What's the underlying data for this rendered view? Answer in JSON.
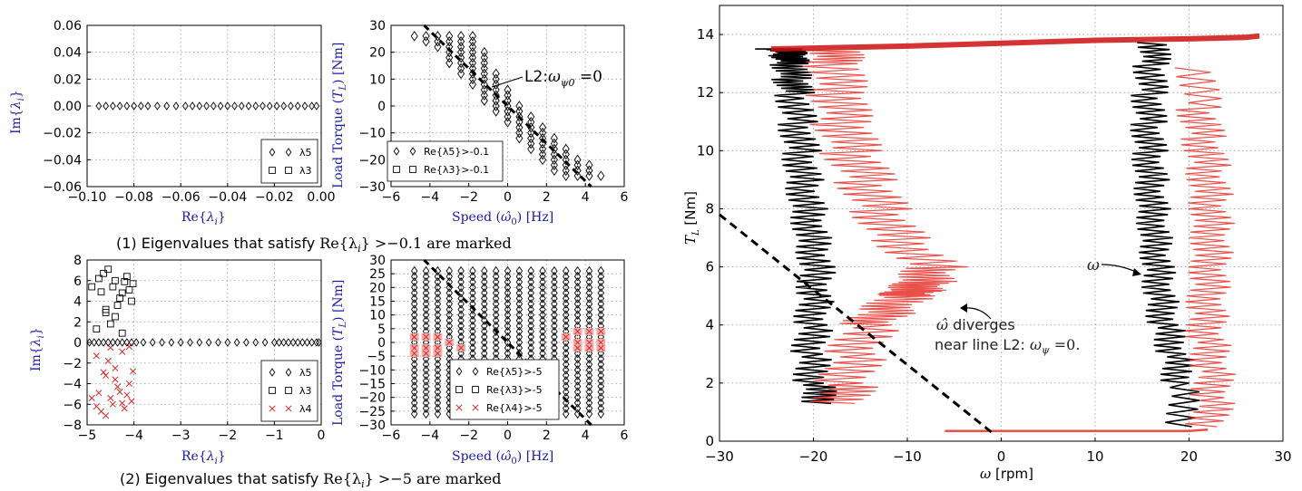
{
  "captions": {
    "c1_prefix": "(1) Eigenvalues that satisfy ",
    "c1_math": "Re{λ",
    "c1_sub": "i",
    "c1_suffix": "} >−0.1 are marked",
    "c2_prefix": "(2) Eigenvalues that satisfy ",
    "c2_math": "Re{λ",
    "c2_sub": "i",
    "c2_suffix": "} >−5 are marked"
  },
  "chart_data": [
    {
      "id": "p1",
      "type": "scatter",
      "xlabel": "Re{λi}",
      "ylabel": "Im{λi}",
      "xlim": [
        -0.1,
        0.0
      ],
      "ylim": [
        -0.06,
        0.06
      ],
      "xticks": [
        "−0.10",
        "−0.08",
        "−0.06",
        "−0.04",
        "−0.02",
        "0.00"
      ],
      "xtick_values": [
        -0.1,
        -0.08,
        -0.06,
        -0.04,
        -0.02,
        0.0
      ],
      "yticks": [
        "−0.06",
        "−0.04",
        "−0.02",
        "0.00",
        "0.02",
        "0.04",
        "0.06"
      ],
      "ytick_values": [
        -0.06,
        -0.04,
        -0.02,
        0.0,
        0.02,
        0.04,
        0.06
      ],
      "grid": true,
      "legend": {
        "placement": "lower-right",
        "entries": [
          "λ5",
          "λ3"
        ]
      },
      "series": [
        {
          "name": "λ5",
          "marker": "diamond",
          "color": "#000000",
          "x": [
            -0.095,
            -0.092,
            -0.089,
            -0.086,
            -0.083,
            -0.08,
            -0.077,
            -0.074,
            -0.07,
            -0.066,
            -0.062,
            -0.058,
            -0.055,
            -0.052,
            -0.049,
            -0.046,
            -0.043,
            -0.04,
            -0.037,
            -0.034,
            -0.031,
            -0.028,
            -0.025,
            -0.022,
            -0.019,
            -0.016,
            -0.013,
            -0.01,
            -0.007,
            -0.004,
            -0.002
          ],
          "y": [
            0,
            0,
            0,
            0,
            0,
            0,
            0,
            0,
            0,
            0,
            0,
            0,
            0,
            0,
            0,
            0,
            0,
            0,
            0,
            0,
            0,
            0,
            0,
            0,
            0,
            0,
            0,
            0,
            0,
            0,
            0
          ]
        }
      ]
    },
    {
      "id": "p2",
      "type": "scatter",
      "xlabel": "Speed (ω̂0) [Hz]",
      "ylabel": "Load Torque (TL) [Nm]",
      "xlim": [
        -6,
        6
      ],
      "ylim": [
        -30,
        30
      ],
      "xticks": [
        "−6",
        "−4",
        "−2",
        "0",
        "2",
        "4",
        "6"
      ],
      "xtick_values": [
        -6,
        -4,
        -2,
        0,
        2,
        4,
        6
      ],
      "yticks": [
        "−30",
        "−20",
        "−10",
        "0",
        "10",
        "20",
        "30"
      ],
      "ytick_values": [
        -30,
        -20,
        -10,
        0,
        10,
        20,
        30
      ],
      "grid": true,
      "legend": {
        "placement": "lower-left",
        "entries": [
          "Re{λ5}>-0.1",
          "Re{λ3}>-0.1"
        ]
      },
      "line": {
        "style": "dashed",
        "x": [
          -4.3,
          4.3
        ],
        "y": [
          32,
          -32
        ]
      },
      "annotation": "L2:ωψ0=0",
      "series": [
        {
          "name": "Re{λ5}>-0.1",
          "marker": "diamond",
          "color": "#000000",
          "columns": [
            {
              "x": -4.8,
              "ymin": 26,
              "ymax": 26
            },
            {
              "x": -4.2,
              "ymin": 24,
              "ymax": 26
            },
            {
              "x": -3.6,
              "ymin": 22,
              "ymax": 26
            },
            {
              "x": -3.0,
              "ymin": 16,
              "ymax": 26
            },
            {
              "x": -2.4,
              "ymin": 12,
              "ymax": 26
            },
            {
              "x": -1.8,
              "ymin": 8,
              "ymax": 26
            },
            {
              "x": -1.2,
              "ymin": 2,
              "ymax": 20
            },
            {
              "x": -0.6,
              "ymin": -2,
              "ymax": 12
            },
            {
              "x": 0.0,
              "ymin": -6,
              "ymax": 6
            },
            {
              "x": 0.6,
              "ymin": -12,
              "ymax": 0
            },
            {
              "x": 1.2,
              "ymin": -16,
              "ymax": -4
            },
            {
              "x": 1.8,
              "ymin": -20,
              "ymax": -8
            },
            {
              "x": 2.4,
              "ymin": -24,
              "ymax": -12
            },
            {
              "x": 3.0,
              "ymin": -26,
              "ymax": -16
            },
            {
              "x": 3.6,
              "ymin": -26,
              "ymax": -20
            },
            {
              "x": 4.2,
              "ymin": -26,
              "ymax": -22
            },
            {
              "x": 4.8,
              "ymin": -26,
              "ymax": -26
            }
          ]
        }
      ]
    },
    {
      "id": "p3",
      "type": "scatter",
      "xlabel": "Re{λi}",
      "ylabel": "Im{λi}",
      "xlim": [
        -5,
        0
      ],
      "ylim": [
        -8,
        8
      ],
      "xticks": [
        "−5",
        "−4",
        "−3",
        "−2",
        "−1",
        "0"
      ],
      "xtick_values": [
        -5,
        -4,
        -3,
        -2,
        -1,
        0
      ],
      "yticks": [
        "−8",
        "−6",
        "−4",
        "−2",
        "0",
        "2",
        "4",
        "6",
        "8"
      ],
      "ytick_values": [
        -8,
        -6,
        -4,
        -2,
        0,
        2,
        4,
        6,
        8
      ],
      "grid": true,
      "legend": {
        "placement": "lower-right",
        "entries": [
          "λ5",
          "λ3",
          "λ4"
        ]
      },
      "series": [
        {
          "name": "λ3",
          "marker": "square",
          "color": "#000000",
          "x": [
            -4.9,
            -4.75,
            -4.7,
            -4.65,
            -4.6,
            -4.55,
            -4.5,
            -4.45,
            -4.4,
            -4.35,
            -4.3,
            -4.25,
            -4.2,
            -4.15,
            -4.1,
            -4.05,
            -4.02,
            -4.6,
            -4.4,
            -4.8,
            -4.25
          ],
          "y": [
            5.4,
            6.2,
            4.9,
            6.7,
            2.9,
            7.1,
            1.8,
            5.4,
            6.0,
            3.6,
            4.3,
            4.8,
            5.9,
            6.4,
            5.1,
            4.0,
            5.7,
            3.2,
            2.5,
            1.3,
            0.9
          ]
        },
        {
          "name": "λ4",
          "marker": "x",
          "color": "#d62728",
          "x": [
            -4.9,
            -4.8,
            -4.75,
            -4.7,
            -4.65,
            -4.6,
            -4.55,
            -4.5,
            -4.45,
            -4.4,
            -4.35,
            -4.3,
            -4.25,
            -4.2,
            -4.15,
            -4.1,
            -4.05,
            -4.02,
            -4.6,
            -4.4,
            -4.8,
            -4.25,
            -4.1,
            -4.5
          ],
          "y": [
            -5.4,
            -6.2,
            -4.9,
            -6.7,
            -2.9,
            -7.1,
            -1.8,
            -5.4,
            -6.0,
            -3.6,
            -4.3,
            -4.8,
            -5.9,
            -6.4,
            -5.1,
            -4.0,
            -5.7,
            -2.8,
            -3.2,
            -2.5,
            -1.3,
            -0.9,
            -0.4,
            -0.5
          ]
        },
        {
          "name": "λ5",
          "marker": "diamond",
          "color": "#000000",
          "x": [
            -4.95,
            -4.85,
            -4.75,
            -4.65,
            -4.55,
            -4.45,
            -4.35,
            -4.25,
            -4.15,
            -4.05,
            -3.95,
            -3.8,
            -3.6,
            -3.4,
            -3.2,
            -3.0,
            -2.8,
            -2.6,
            -2.4,
            -2.2,
            -2.0,
            -1.8,
            -1.6,
            -1.4,
            -1.2,
            -1.0,
            -0.9,
            -0.8,
            -0.7,
            -0.6,
            -0.5,
            -0.4,
            -0.3,
            -0.2,
            -0.1,
            -0.05
          ],
          "y": [
            0,
            0,
            0,
            0,
            0,
            0,
            0,
            0,
            0,
            0,
            0,
            0,
            0,
            0,
            0,
            0,
            0,
            0,
            0,
            0,
            0,
            0,
            0,
            0,
            0,
            0,
            0,
            0,
            0,
            0,
            0,
            0,
            0,
            0,
            0,
            0
          ]
        }
      ]
    },
    {
      "id": "p4",
      "type": "scatter",
      "xlabel": "Speed (ω̂0) [Hz]",
      "ylabel": "Load Torque (TL) [Nm]",
      "xlim": [
        -6,
        6
      ],
      "ylim": [
        -30,
        30
      ],
      "xticks": [
        "−6",
        "−4",
        "−2",
        "0",
        "2",
        "4",
        "6"
      ],
      "xtick_values": [
        -6,
        -4,
        -2,
        0,
        2,
        4,
        6
      ],
      "yticks": [
        "−30",
        "−25",
        "−20",
        "−15",
        "−10",
        "−5",
        "0",
        "5",
        "10",
        "15",
        "20",
        "25",
        "30"
      ],
      "ytick_values": [
        -30,
        -25,
        -20,
        -15,
        -10,
        -5,
        0,
        5,
        10,
        15,
        20,
        25,
        30
      ],
      "grid": true,
      "legend": {
        "placement": "bottom-center",
        "entries": [
          "Re{λ5}>-5",
          "Re{λ3}>-5",
          "Re{λ4}>-5"
        ]
      },
      "line": {
        "style": "dashed",
        "x": [
          -4.3,
          4.3
        ],
        "y": [
          32,
          -32
        ]
      },
      "series": [
        {
          "name": "Re{λ5}>-5",
          "marker": "diamond",
          "color": "#000000",
          "grid_x": [
            -4.8,
            -4.2,
            -3.6,
            -3.0,
            -2.4,
            -1.8,
            -1.2,
            -0.6,
            0.0,
            0.6,
            1.2,
            1.8,
            2.4,
            3.0,
            3.6,
            4.2,
            4.8
          ],
          "grid_y_range": [
            -26,
            26
          ],
          "grid_y_step": 2
        },
        {
          "name": "Re{λ4}>-5",
          "marker": "x",
          "color": "#d62728",
          "x": [
            -4.8,
            -4.8,
            -4.8,
            -4.2,
            -4.2,
            -4.2,
            -3.6,
            -3.6,
            -3.6,
            -3.0,
            -2.4,
            3.0,
            3.6,
            3.6,
            3.6,
            4.2,
            4.2,
            4.2,
            4.8,
            4.8,
            4.8
          ],
          "y": [
            2,
            -2,
            -4,
            2,
            -2,
            -4,
            2,
            -2,
            -4,
            0,
            -2,
            2,
            4,
            0,
            -2,
            4,
            0,
            -2,
            4,
            0,
            -2
          ]
        }
      ]
    },
    {
      "id": "p5",
      "type": "line",
      "xlabel": "ω [rpm]",
      "ylabel": "TL [Nm]",
      "xlim": [
        -30,
        30
      ],
      "ylim": [
        0,
        15
      ],
      "xticks": [
        "−30",
        "−20",
        "−10",
        "0",
        "10",
        "20",
        "30"
      ],
      "xtick_values": [
        -30,
        -20,
        -10,
        0,
        10,
        20,
        30
      ],
      "yticks": [
        "0",
        "2",
        "4",
        "6",
        "8",
        "10",
        "12",
        "14"
      ],
      "ytick_values": [
        0,
        2,
        4,
        6,
        8,
        10,
        12,
        14
      ],
      "grid": true,
      "annotations": [
        "ω",
        "ω̂ diverges",
        "near line L2: ωψ =0."
      ],
      "line": {
        "style": "dashed",
        "x": [
          -30,
          -1
        ],
        "y": [
          7.8,
          0.3
        ]
      },
      "series": [
        {
          "name": "",
          "color": "#000000",
          "x": [
            -19,
            -20,
            -20.3,
            -20,
            -19.8,
            -19.5,
            -20,
            -20.5,
            -21,
            -21.3,
            -21.7,
            -22,
            -22.3,
            -22.5,
            -22.7,
            -23,
            -24,
            -24.5
          ],
          "y": [
            1.3,
            2,
            3,
            4,
            5,
            6,
            7,
            8,
            9,
            10,
            11,
            12,
            12.5,
            13,
            13.3,
            13.5,
            13.5,
            13.5
          ]
        },
        {
          "name": "",
          "color": "#000000",
          "x": [
            19.5,
            19,
            18.5,
            17.5,
            17,
            16.8,
            16.5,
            16.2,
            16,
            15.8,
            15.7,
            15.8,
            16,
            16.5
          ],
          "y": [
            0.5,
            2,
            3,
            4,
            5,
            6,
            7,
            8,
            9,
            10,
            11,
            12,
            13,
            13.8
          ]
        },
        {
          "name": "",
          "color": "#e8302a",
          "x": [
            -17,
            -16.5,
            -15.5,
            -14,
            -12,
            -10,
            -9,
            -8,
            -7,
            -11,
            -13,
            -14.5,
            -16,
            -17,
            -17.5,
            -18,
            -18
          ],
          "y": [
            1.3,
            2,
            3,
            4,
            4.5,
            5,
            5.2,
            5.5,
            6,
            7,
            8,
            9,
            10,
            11,
            12,
            13,
            13.5
          ]
        },
        {
          "name": "",
          "color": "#e8302a",
          "x": [
            22,
            22.5,
            22.5,
            22,
            22,
            22.3,
            22.5,
            22.5,
            22.3,
            22,
            21.5,
            21,
            21
          ],
          "y": [
            0.5,
            1.5,
            2.5,
            3.5,
            4.5,
            5.5,
            6.5,
            7.5,
            8.5,
            9.5,
            10.5,
            11.5,
            13
          ]
        },
        {
          "name": "",
          "color": "#cc1111",
          "x": [
            -24.5,
            -10,
            0,
            10,
            20,
            26,
            27.5
          ],
          "y": [
            13.5,
            13.6,
            13.7,
            13.8,
            13.85,
            13.9,
            13.95
          ]
        },
        {
          "name": "",
          "color": "#e8302a",
          "x": [
            -6,
            0,
            10,
            20,
            22
          ],
          "y": [
            0.35,
            0.35,
            0.35,
            0.35,
            0.4
          ]
        }
      ]
    }
  ]
}
